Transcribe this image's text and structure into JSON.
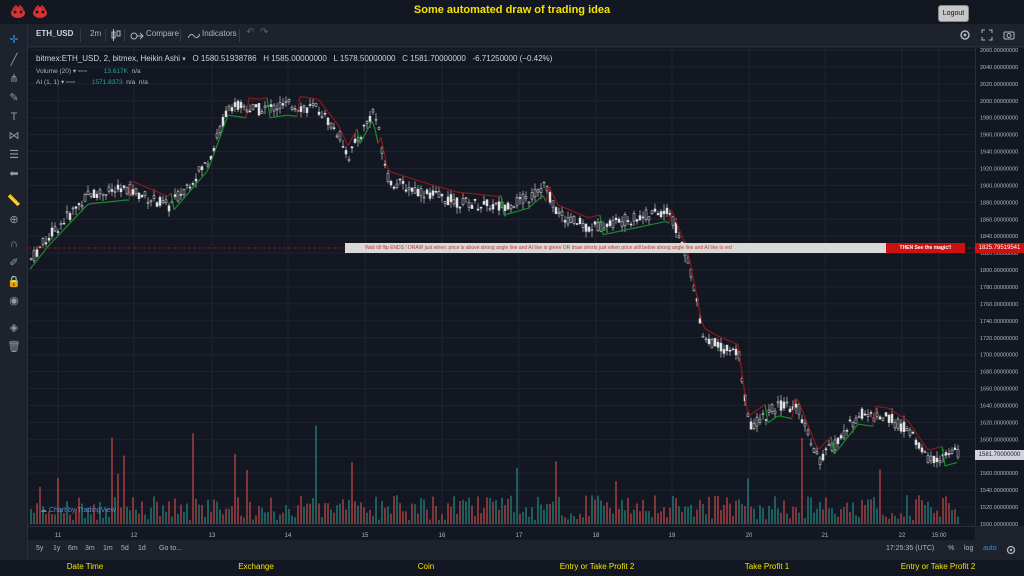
{
  "app": {
    "title": "Some automated draw of trading idea",
    "logout_label": "Logout"
  },
  "toolbar": {
    "symbol": "ETH_USD",
    "interval": "2m",
    "compare_label": "Compare",
    "indicators_label": "Indicators"
  },
  "legend": {
    "main": "bitmex:ETH_USD, 2, bitmex, Heikin Ashi",
    "open": "O 1580.51938786",
    "high": "H 1585.00000000",
    "low": "L 1578.50000000",
    "close": "C 1581.70000000",
    "change": "-6.71250000 (−0.42%)",
    "volume_label": "Volume (20)",
    "volume_value": "13.617K",
    "volume_na": "n/a",
    "ai_label": "AI (1, 1)",
    "ai_value": "1571.8373",
    "ai_na1": "n/a",
    "ai_na2": "n/a"
  },
  "annotation": {
    "text": "Wait till flip ENDS  !    DRAW just when:  price is above strong angle line and AI line is green          OR          draw shorts just when price still below strong angle line and AI line is red",
    "cta": "THEN See the magic!!",
    "price_tag": "1825.79519541"
  },
  "last_price": "1581.70000000",
  "price_axis": [
    "2060.00000000",
    "2040.00000000",
    "2020.00000000",
    "2000.00000000",
    "1980.00000000",
    "1960.00000000",
    "1940.00000000",
    "1920.00000000",
    "1900.00000000",
    "1880.00000000",
    "1860.00000000",
    "1840.00000000",
    "1820.00000000",
    "1800.00000000",
    "1780.00000000",
    "1760.00000000",
    "1740.00000000",
    "1720.00000000",
    "1700.00000000",
    "1680.00000000",
    "1660.00000000",
    "1640.00000000",
    "1620.00000000",
    "1600.00000000",
    "1580.00000000",
    "1560.00000000",
    "1540.00000000",
    "1520.00000000",
    "1500.00000000"
  ],
  "time_axis": [
    "11",
    "12",
    "13",
    "14",
    "15",
    "16",
    "17",
    "18",
    "19",
    "20",
    "21",
    "22",
    "15:00"
  ],
  "bottom": {
    "ranges": [
      "5y",
      "1y",
      "6m",
      "3m",
      "1m",
      "5d",
      "1d"
    ],
    "goto": "Go to...",
    "clock": "17:25:35 (UTC)",
    "pct": "%",
    "log": "log",
    "auto": "auto"
  },
  "watermark": "Chart by TradingView",
  "footer": [
    "Date Time",
    "Exchange",
    "Coin",
    "Entry or Take Profit 2",
    "Take Profit 1",
    "Entry or Take Profit 2"
  ],
  "colors": {
    "up": "#26a69a",
    "down": "#ef5350",
    "accent": "#f5e400",
    "ai_green": "#1b8a2e",
    "ai_red": "#8b1a1a"
  }
}
